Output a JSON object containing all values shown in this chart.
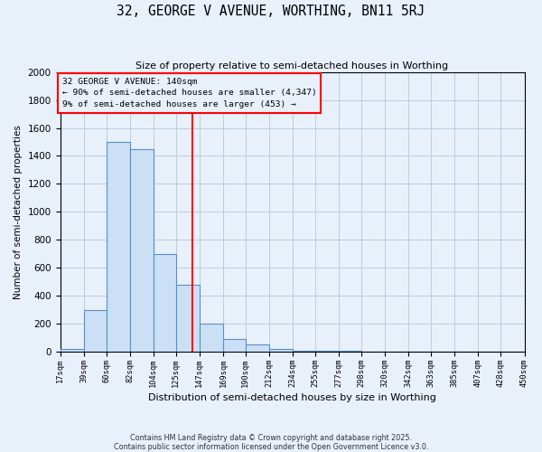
{
  "title": "32, GEORGE V AVENUE, WORTHING, BN11 5RJ",
  "subtitle": "Size of property relative to semi-detached houses in Worthing",
  "xlabel": "Distribution of semi-detached houses by size in Worthing",
  "ylabel": "Number of semi-detached properties",
  "bin_edges": [
    17,
    39,
    60,
    82,
    104,
    125,
    147,
    169,
    190,
    212,
    234,
    255,
    277,
    298,
    320,
    342,
    363,
    385,
    407,
    428,
    450
  ],
  "bar_heights": [
    17,
    300,
    1500,
    1450,
    700,
    480,
    200,
    90,
    50,
    20,
    8,
    5,
    3,
    2,
    2,
    1,
    1,
    1,
    0,
    0
  ],
  "bar_color": "#cce0f5",
  "bar_edge_color": "#5590c8",
  "grid_color": "#bbccdd",
  "bg_color": "#e8f0fa",
  "vline_x": 140,
  "vline_color": "red",
  "annotation_title": "32 GEORGE V AVENUE: 140sqm",
  "annotation_line1": "← 90% of semi-detached houses are smaller (4,347)",
  "annotation_line2": "9% of semi-detached houses are larger (453) →",
  "annotation_box_color": "red",
  "ylim": [
    0,
    2000
  ],
  "yticks": [
    0,
    200,
    400,
    600,
    800,
    1000,
    1200,
    1400,
    1600,
    1800,
    2000
  ],
  "footer_line1": "Contains HM Land Registry data © Crown copyright and database right 2025.",
  "footer_line2": "Contains public sector information licensed under the Open Government Licence v3.0."
}
